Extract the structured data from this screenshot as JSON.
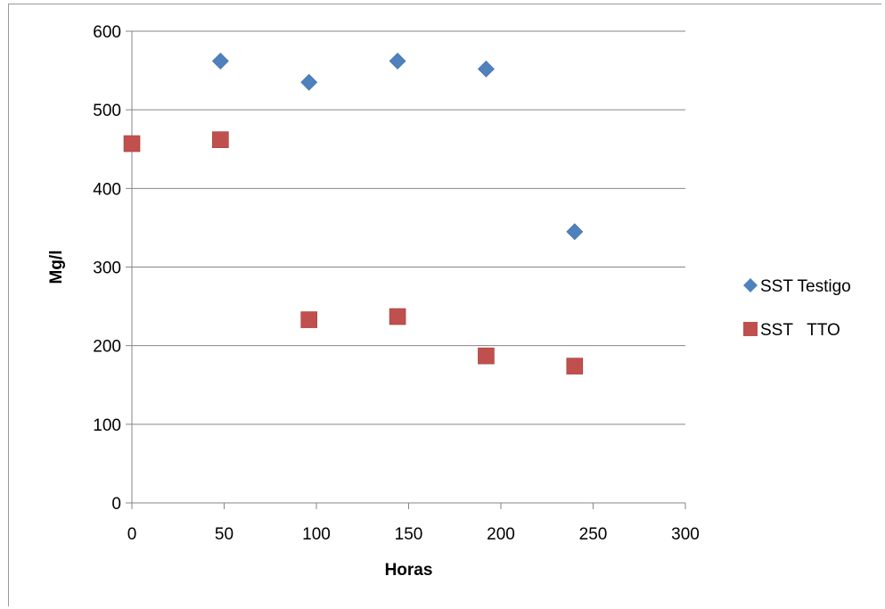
{
  "chart_data": {
    "type": "scatter",
    "xlabel": "Horas",
    "ylabel": "Mg/l",
    "xlim": [
      0,
      300
    ],
    "ylim": [
      0,
      600
    ],
    "xticks": [
      0,
      50,
      100,
      150,
      200,
      250,
      300
    ],
    "yticks": [
      0,
      100,
      200,
      300,
      400,
      500,
      600
    ],
    "grid": "horizontal",
    "legend_position": "right",
    "series": [
      {
        "name": "SST Testigo",
        "marker": "diamond",
        "color": "#4f81bd",
        "points": [
          {
            "x": 48,
            "y": 562
          },
          {
            "x": 96,
            "y": 535
          },
          {
            "x": 144,
            "y": 562
          },
          {
            "x": 192,
            "y": 552
          },
          {
            "x": 240,
            "y": 345
          }
        ]
      },
      {
        "name": "SST   TTO",
        "marker": "square",
        "color": "#c0504d",
        "points": [
          {
            "x": 0,
            "y": 457
          },
          {
            "x": 48,
            "y": 462
          },
          {
            "x": 96,
            "y": 233
          },
          {
            "x": 144,
            "y": 237
          },
          {
            "x": 192,
            "y": 187
          },
          {
            "x": 240,
            "y": 174
          }
        ]
      }
    ]
  }
}
